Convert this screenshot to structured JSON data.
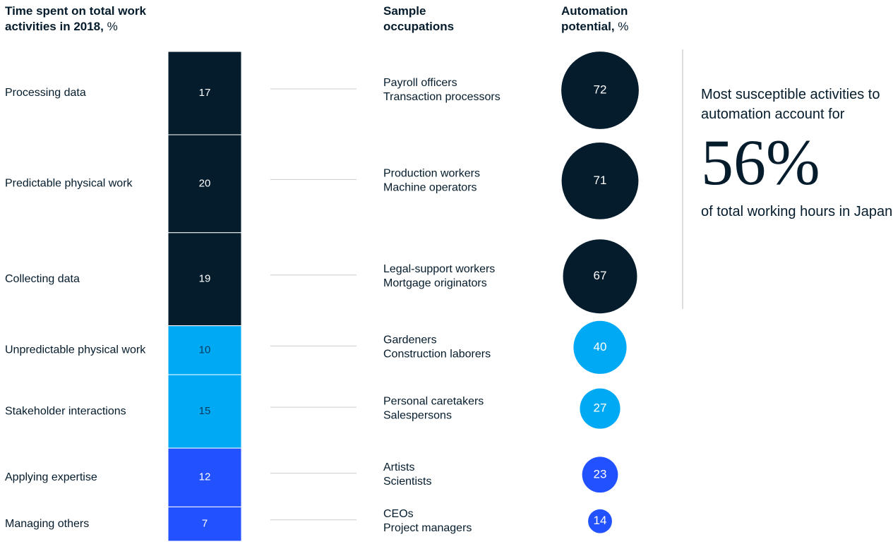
{
  "chart_data": {
    "type": "stacked-bar-bubble",
    "title": "Time spent on total work activities in 2018,",
    "title_unit": "%",
    "occupations_title": "Sample occupations",
    "automation_title": "Automation potential,",
    "automation_unit": "%",
    "categories": [
      "Processing data",
      "Predictable physical work",
      "Collecting data",
      "Unpredictable physical work",
      "Stakeholder interactions",
      "Applying expertise",
      "Managing others"
    ],
    "values": [
      17,
      20,
      19,
      10,
      15,
      12,
      7
    ],
    "occupations": [
      [
        "Payroll officers",
        "Transaction processors"
      ],
      [
        "Production workers",
        "Machine operators"
      ],
      [
        "Legal-support workers",
        "Mortgage originators"
      ],
      [
        "Gardeners",
        "Construction laborers"
      ],
      [
        "Personal caretakers",
        "Salespersons"
      ],
      [
        "Artists",
        "Scientists"
      ],
      [
        "CEOs",
        "Project managers"
      ]
    ],
    "automation": [
      72,
      71,
      67,
      40,
      27,
      23,
      14
    ],
    "colors": [
      "#051c2c",
      "#051c2c",
      "#051c2c",
      "#00a9f4",
      "#00a9f4",
      "#2251ff",
      "#2251ff"
    ],
    "callout": {
      "intro": "Most susceptible activities to automation account for",
      "value": "56%",
      "outro": "of total working hours in Japan"
    }
  }
}
